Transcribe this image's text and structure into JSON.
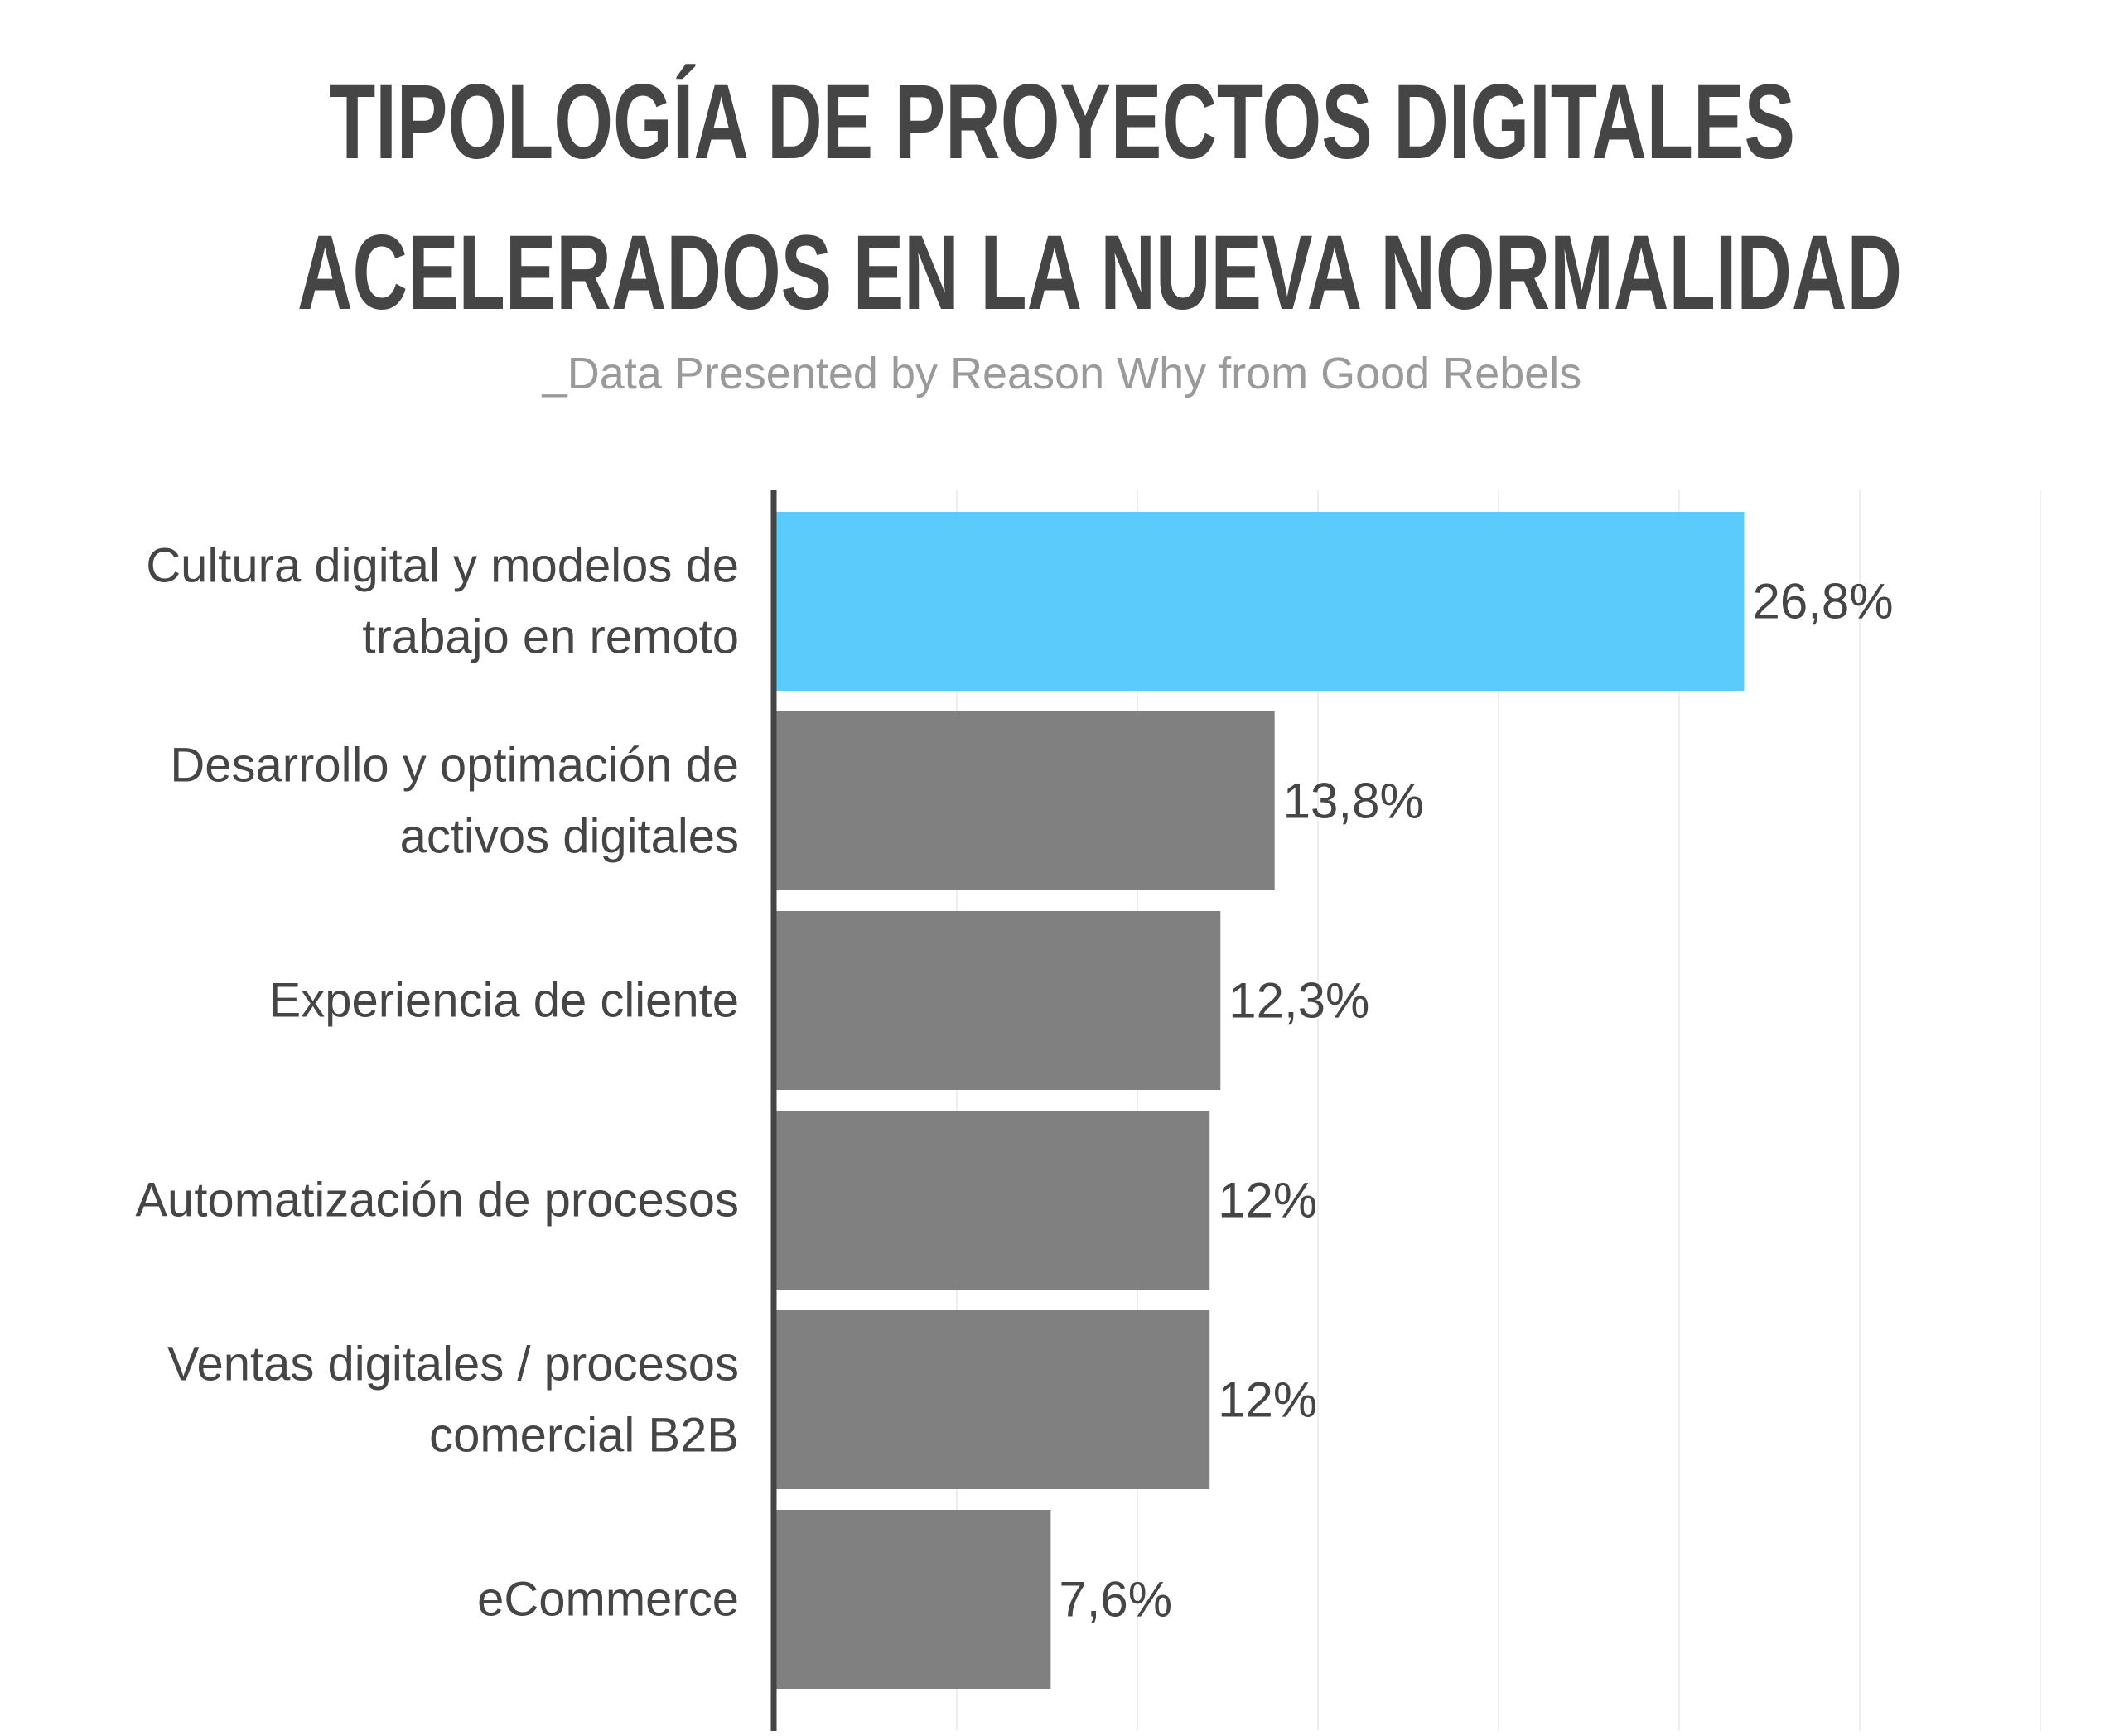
{
  "title_lines": [
    "TIPOLOGÍA DE PROYECTOS DIGITALES",
    "ACELERADOS EN LA NUEVA NORMALIDAD"
  ],
  "subtitle": "_Data Presented by Reason Why from Good Rebels",
  "colors": {
    "highlight": "#5bcbfb",
    "bar": "#808080",
    "text": "#454545",
    "subtitle": "#9a9a9a",
    "axis": "#454545",
    "grid": "#eeeeee"
  },
  "chart_data": {
    "type": "bar",
    "orientation": "horizontal",
    "categories": [
      [
        "Cultura digital y modelos de",
        "trabajo en remoto"
      ],
      [
        "Desarrollo y optimación de",
        "activos digitales"
      ],
      [
        "Experiencia de cliente"
      ],
      [
        "Automatización de procesos"
      ],
      [
        "Ventas digitales / procesos",
        "comercial B2B"
      ],
      [
        "eCommerce"
      ]
    ],
    "values": [
      26.8,
      13.8,
      12.3,
      12,
      12,
      7.6
    ],
    "value_labels": [
      "26,8%",
      "13,8%",
      "12,3%",
      "12%",
      "12%",
      "7,6%"
    ],
    "highlight_index": 0,
    "xlim": [
      0,
      35
    ],
    "grid": true,
    "legend": "none"
  }
}
